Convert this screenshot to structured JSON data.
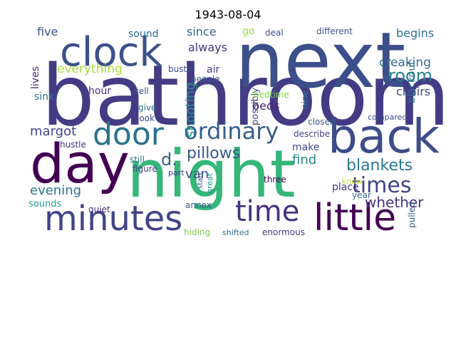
{
  "title": "1943-08-04",
  "palette": {
    "background": "#ffffff"
  },
  "words": [
    {
      "text": "bathroom",
      "color": "#433c84"
    },
    {
      "text": "next",
      "color": "#3c4f8a"
    },
    {
      "text": "night",
      "color": "#35b779"
    },
    {
      "text": "day",
      "color": "#440154"
    },
    {
      "text": "back",
      "color": "#3e4c8a"
    },
    {
      "text": "clock",
      "color": "#3b518b"
    },
    {
      "text": "door",
      "color": "#2c728e"
    },
    {
      "text": "minutes",
      "color": "#414487"
    },
    {
      "text": "little",
      "color": "#440154"
    },
    {
      "text": "time",
      "color": "#46327e"
    },
    {
      "text": "ordinary",
      "color": "#355f8d"
    },
    {
      "text": "times",
      "color": "#404588"
    },
    {
      "text": "room",
      "color": "#26828e"
    },
    {
      "text": "blankets",
      "color": "#2a778e"
    },
    {
      "text": "pillows",
      "color": "#38598c"
    },
    {
      "text": "margot",
      "color": "#3f4788"
    },
    {
      "text": "evening",
      "color": "#2c738e"
    },
    {
      "text": "whether",
      "color": "#46327e"
    },
    {
      "text": "everything",
      "color": "#a5db36"
    },
    {
      "text": "five",
      "color": "#3b528b"
    },
    {
      "text": "sound",
      "color": "#31688e"
    },
    {
      "text": "since",
      "color": "#33638d"
    },
    {
      "text": "always",
      "color": "#453581"
    },
    {
      "text": "begins",
      "color": "#2d708e"
    },
    {
      "text": "creaking",
      "color": "#306a8e"
    },
    {
      "text": "chairs",
      "color": "#3e4a89"
    },
    {
      "text": "sink",
      "color": "#2a788e"
    },
    {
      "text": "lives",
      "color": "#482475"
    },
    {
      "text": "hour",
      "color": "#472d7b"
    },
    {
      "text": "tell",
      "color": "#3b528b"
    },
    {
      "text": "shooting",
      "color": "#21918c"
    },
    {
      "text": "air",
      "color": "#443a83"
    },
    {
      "text": "bustle",
      "color": "#3e4989"
    },
    {
      "text": "beds",
      "color": "#482576"
    },
    {
      "text": "possibly",
      "color": "#3f4889"
    },
    {
      "text": "nine",
      "color": "#27808e"
    },
    {
      "text": "blackout",
      "color": "#2c728e"
    },
    {
      "text": "figure",
      "color": "#453882"
    },
    {
      "text": "van",
      "color": "#3d4d8a"
    },
    {
      "text": "make",
      "color": "#3e4a89"
    },
    {
      "text": "find",
      "color": "#24878e"
    },
    {
      "text": "place",
      "color": "#453882"
    },
    {
      "text": "three",
      "color": "#440154"
    },
    {
      "text": "annex",
      "color": "#34608d"
    },
    {
      "text": "quiet",
      "color": "#472c7a"
    },
    {
      "text": "sounds",
      "color": "#1f9f88"
    },
    {
      "text": "hiding",
      "color": "#7ad151"
    },
    {
      "text": "still",
      "color": "#2d718e"
    },
    {
      "text": "go",
      "color": "#9bd93c"
    },
    {
      "text": "deal",
      "color": "#3e4c8a"
    },
    {
      "text": "different",
      "color": "#3c508b"
    },
    {
      "text": "people",
      "color": "#38588c"
    },
    {
      "text": "bedtime",
      "color": "#81d34d"
    },
    {
      "text": "describe",
      "color": "#414487"
    },
    {
      "text": "closer",
      "color": "#38588c"
    },
    {
      "text": "compared",
      "color": "#3e4c8a"
    },
    {
      "text": "year",
      "color": "#31688e"
    },
    {
      "text": "know",
      "color": "#c2df23"
    },
    {
      "text": "shifted",
      "color": "#2e6e8e"
    },
    {
      "text": "enormous",
      "color": "#443a83"
    },
    {
      "text": "pulled",
      "color": "#365c8d"
    },
    {
      "text": "start",
      "color": "#3b528b"
    },
    {
      "text": "great",
      "color": "#21918c"
    },
    {
      "text": "part",
      "color": "#443b84"
    },
    {
      "text": "give",
      "color": "#2d718e"
    },
    {
      "text": "look",
      "color": "#3e4a89"
    },
    {
      "text": "hustle",
      "color": "#46307e"
    },
    {
      "text": "d.",
      "color": "#355f8d"
    }
  ]
}
